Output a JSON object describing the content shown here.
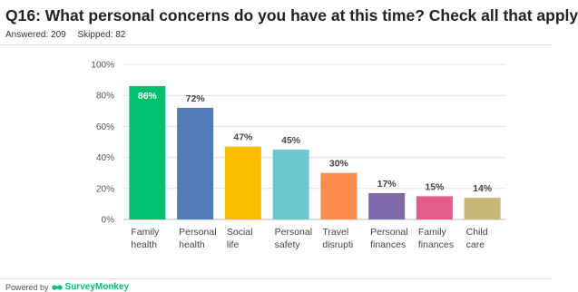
{
  "page": {
    "title": "Q16: What personal concerns do you have at this time? Check all that apply",
    "answered": "Answered: 209",
    "skipped": "Skipped: 82",
    "footer_prefix": "Powered by",
    "footer_brand": "SurveyMonkey",
    "logo_icon": "surveymonkey-logo-icon"
  },
  "chart_data": {
    "type": "bar",
    "categories": [
      [
        "Family",
        "health"
      ],
      [
        "Personal",
        "health"
      ],
      [
        "Social",
        "life"
      ],
      [
        "Personal",
        "safety"
      ],
      [
        "Travel",
        "disrupti"
      ],
      [
        "Personal",
        "finances"
      ],
      [
        "Family",
        "finances"
      ],
      [
        "Child",
        "care"
      ]
    ],
    "values": [
      86,
      72,
      47,
      45,
      30,
      17,
      15,
      14
    ],
    "value_labels": [
      "86%",
      "72%",
      "47%",
      "45%",
      "30%",
      "17%",
      "15%",
      "14%"
    ],
    "colors": [
      "#00bf6f",
      "#507cb6",
      "#f9be00",
      "#6bc8cd",
      "#ff8b4f",
      "#7f6aa9",
      "#e05d8a",
      "#c7b879"
    ],
    "ylim": [
      0,
      100
    ],
    "yticks": [
      0,
      20,
      40,
      60,
      80,
      100
    ],
    "ytick_labels": [
      "0%",
      "20%",
      "40%",
      "60%",
      "80%",
      "100%"
    ],
    "grid": true,
    "title": "",
    "xlabel": "",
    "ylabel": ""
  }
}
